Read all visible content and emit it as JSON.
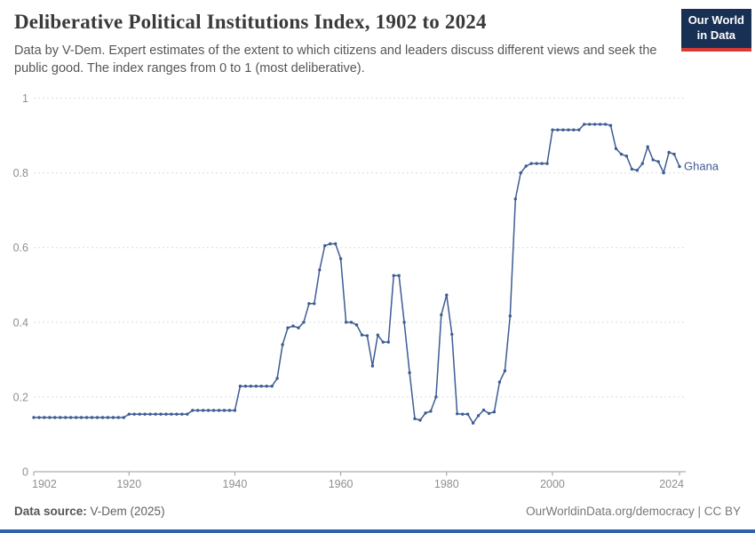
{
  "header": {
    "title": "Deliberative Political Institutions Index, 1902 to 2024",
    "subtitle": "Data by V-Dem. Expert estimates of the extent to which citizens and leaders discuss different views and seek the public good. The index ranges from 0 to 1 (most deliberative).",
    "logo_line1": "Our World",
    "logo_line2": "in Data"
  },
  "chart_data": {
    "type": "line",
    "title": "Deliberative Political Institutions Index, 1902 to 2024",
    "xlabel": "",
    "ylabel": "",
    "xlim": [
      1902,
      2024
    ],
    "ylim": [
      0,
      1
    ],
    "grid": "horizontal-dashed",
    "legend_position": "end-of-line-label",
    "x_ticks": [
      1902,
      1920,
      1940,
      1960,
      1980,
      2000,
      2024
    ],
    "y_ticks": [
      0,
      0.2,
      0.4,
      0.6,
      0.8,
      1
    ],
    "y_tick_labels": [
      "0",
      "0.2",
      "0.4",
      "0.6",
      "0.8",
      "1"
    ],
    "series": [
      {
        "name": "Ghana",
        "color": "#3d5c94",
        "start_year": 1902,
        "interval": "annual",
        "values": [
          0.145,
          0.145,
          0.145,
          0.145,
          0.145,
          0.145,
          0.145,
          0.145,
          0.145,
          0.145,
          0.145,
          0.145,
          0.145,
          0.145,
          0.145,
          0.145,
          0.145,
          0.145,
          0.154,
          0.154,
          0.154,
          0.154,
          0.154,
          0.154,
          0.154,
          0.154,
          0.154,
          0.154,
          0.154,
          0.154,
          0.164,
          0.164,
          0.164,
          0.164,
          0.164,
          0.164,
          0.164,
          0.164,
          0.164,
          0.229,
          0.229,
          0.229,
          0.229,
          0.229,
          0.229,
          0.229,
          0.25,
          0.34,
          0.385,
          0.39,
          0.385,
          0.4,
          0.45,
          0.45,
          0.54,
          0.605,
          0.61,
          0.61,
          0.57,
          0.4,
          0.4,
          0.393,
          0.366,
          0.364,
          0.283,
          0.366,
          0.347,
          0.347,
          0.525,
          0.525,
          0.4,
          0.265,
          0.142,
          0.138,
          0.157,
          0.162,
          0.2,
          0.42,
          0.473,
          0.368,
          0.155,
          0.154,
          0.154,
          0.13,
          0.15,
          0.165,
          0.156,
          0.16,
          0.24,
          0.27,
          0.417,
          0.73,
          0.8,
          0.818,
          0.825,
          0.825,
          0.825,
          0.825,
          0.915,
          0.915,
          0.915,
          0.915,
          0.915,
          0.915,
          0.93,
          0.93,
          0.93,
          0.93,
          0.93,
          0.927,
          0.865,
          0.85,
          0.845,
          0.81,
          0.807,
          0.825,
          0.87,
          0.835,
          0.83,
          0.8,
          0.855,
          0.85,
          0.817
        ]
      }
    ],
    "colors": {
      "line": "#3d5c94",
      "gridline": "#dcdcdc",
      "axis": "#9a9a9a",
      "tick_label": "#8f8f8f"
    }
  },
  "footer": {
    "source_label": "Data source:",
    "source_value": " V-Dem (2025)",
    "license": "OurWorldinData.org/democracy | CC BY"
  }
}
